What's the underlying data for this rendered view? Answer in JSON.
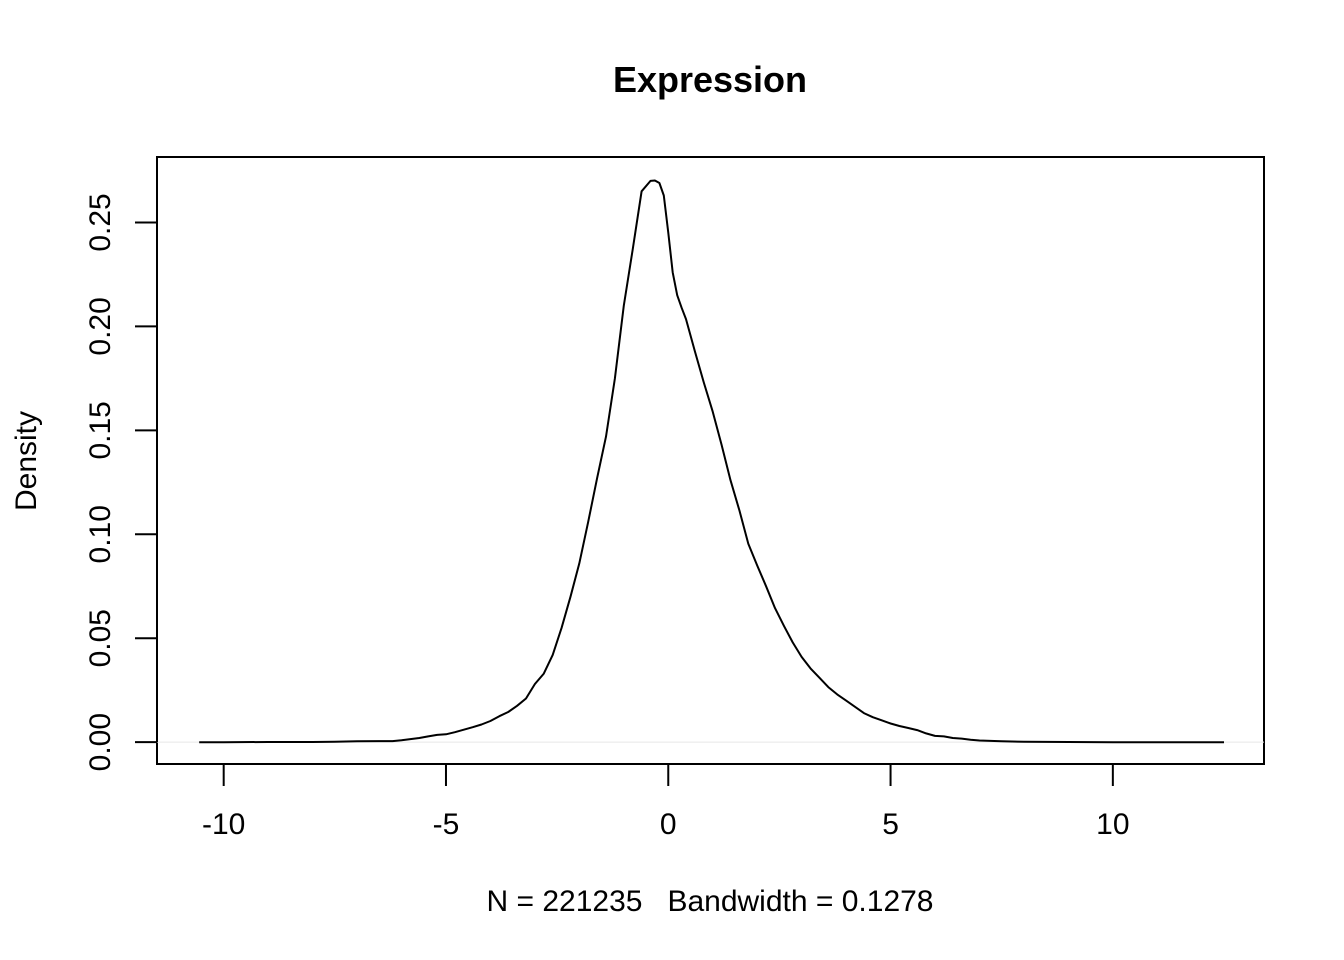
{
  "chart_data": {
    "type": "line",
    "title": "Expression",
    "xlabel": "N = 221235   Bandwidth = 0.1278",
    "ylabel": "Density",
    "xlim": [
      -11.5,
      13.4
    ],
    "ylim": [
      -0.0105,
      0.2815
    ],
    "x_ticks": [
      -10,
      -5,
      0,
      5,
      10
    ],
    "x_tick_labels": [
      "-10",
      "-5",
      "0",
      "5",
      "10"
    ],
    "y_ticks": [
      0,
      0.05,
      0.1,
      0.15,
      0.2,
      0.25
    ],
    "y_tick_labels": [
      "0.00",
      "0.05",
      "0.10",
      "0.15",
      "0.20",
      "0.25"
    ],
    "grid": false,
    "line_color": "#000000",
    "zero_line_color": "#e6e6e6",
    "series": [
      {
        "x": [
          -10.55,
          -10,
          -9,
          -8,
          -7.5,
          -7,
          -6.5,
          -6.2,
          -6,
          -5.8,
          -5.6,
          -5.4,
          -5.2,
          -5,
          -4.8,
          -4.6,
          -4.4,
          -4.2,
          -4,
          -3.8,
          -3.6,
          -3.4,
          -3.2,
          -3,
          -2.8,
          -2.6,
          -2.4,
          -2.2,
          -2,
          -1.8,
          -1.6,
          -1.4,
          -1.2,
          -1,
          -0.8,
          -0.6,
          -0.4,
          -0.3,
          -0.2,
          -0.1,
          0,
          0.1,
          0.2,
          0.3,
          0.4,
          0.6,
          0.8,
          1,
          1.2,
          1.4,
          1.6,
          1.8,
          2,
          2.2,
          2.4,
          2.6,
          2.8,
          3,
          3.2,
          3.4,
          3.6,
          3.8,
          4,
          4.2,
          4.4,
          4.6,
          4.8,
          5,
          5.2,
          5.4,
          5.6,
          5.8,
          6,
          6.2,
          6.4,
          6.6,
          6.8,
          7,
          7.5,
          8,
          9,
          10,
          11,
          12,
          12.5
        ],
        "y": [
          0,
          0,
          0.0001,
          0.0001,
          0.0002,
          0.0004,
          0.0005,
          0.0005,
          0.0009,
          0.0015,
          0.002,
          0.0028,
          0.0035,
          0.0038,
          0.0048,
          0.006,
          0.0072,
          0.0085,
          0.0102,
          0.0125,
          0.0145,
          0.0175,
          0.021,
          0.028,
          0.033,
          0.042,
          0.055,
          0.07,
          0.086,
          0.106,
          0.127,
          0.147,
          0.175,
          0.21,
          0.237,
          0.265,
          0.27,
          0.2702,
          0.269,
          0.263,
          0.245,
          0.226,
          0.215,
          0.209,
          0.2035,
          0.188,
          0.173,
          0.159,
          0.143,
          0.126,
          0.1115,
          0.0955,
          0.085,
          0.075,
          0.0645,
          0.056,
          0.048,
          0.041,
          0.0355,
          0.031,
          0.0265,
          0.023,
          0.02,
          0.017,
          0.014,
          0.012,
          0.0105,
          0.009,
          0.0078,
          0.0068,
          0.0058,
          0.0042,
          0.003,
          0.0028,
          0.002,
          0.0017,
          0.0012,
          0.0008,
          0.0004,
          0.0002,
          0.0001,
          0,
          0,
          0,
          0
        ]
      }
    ]
  }
}
